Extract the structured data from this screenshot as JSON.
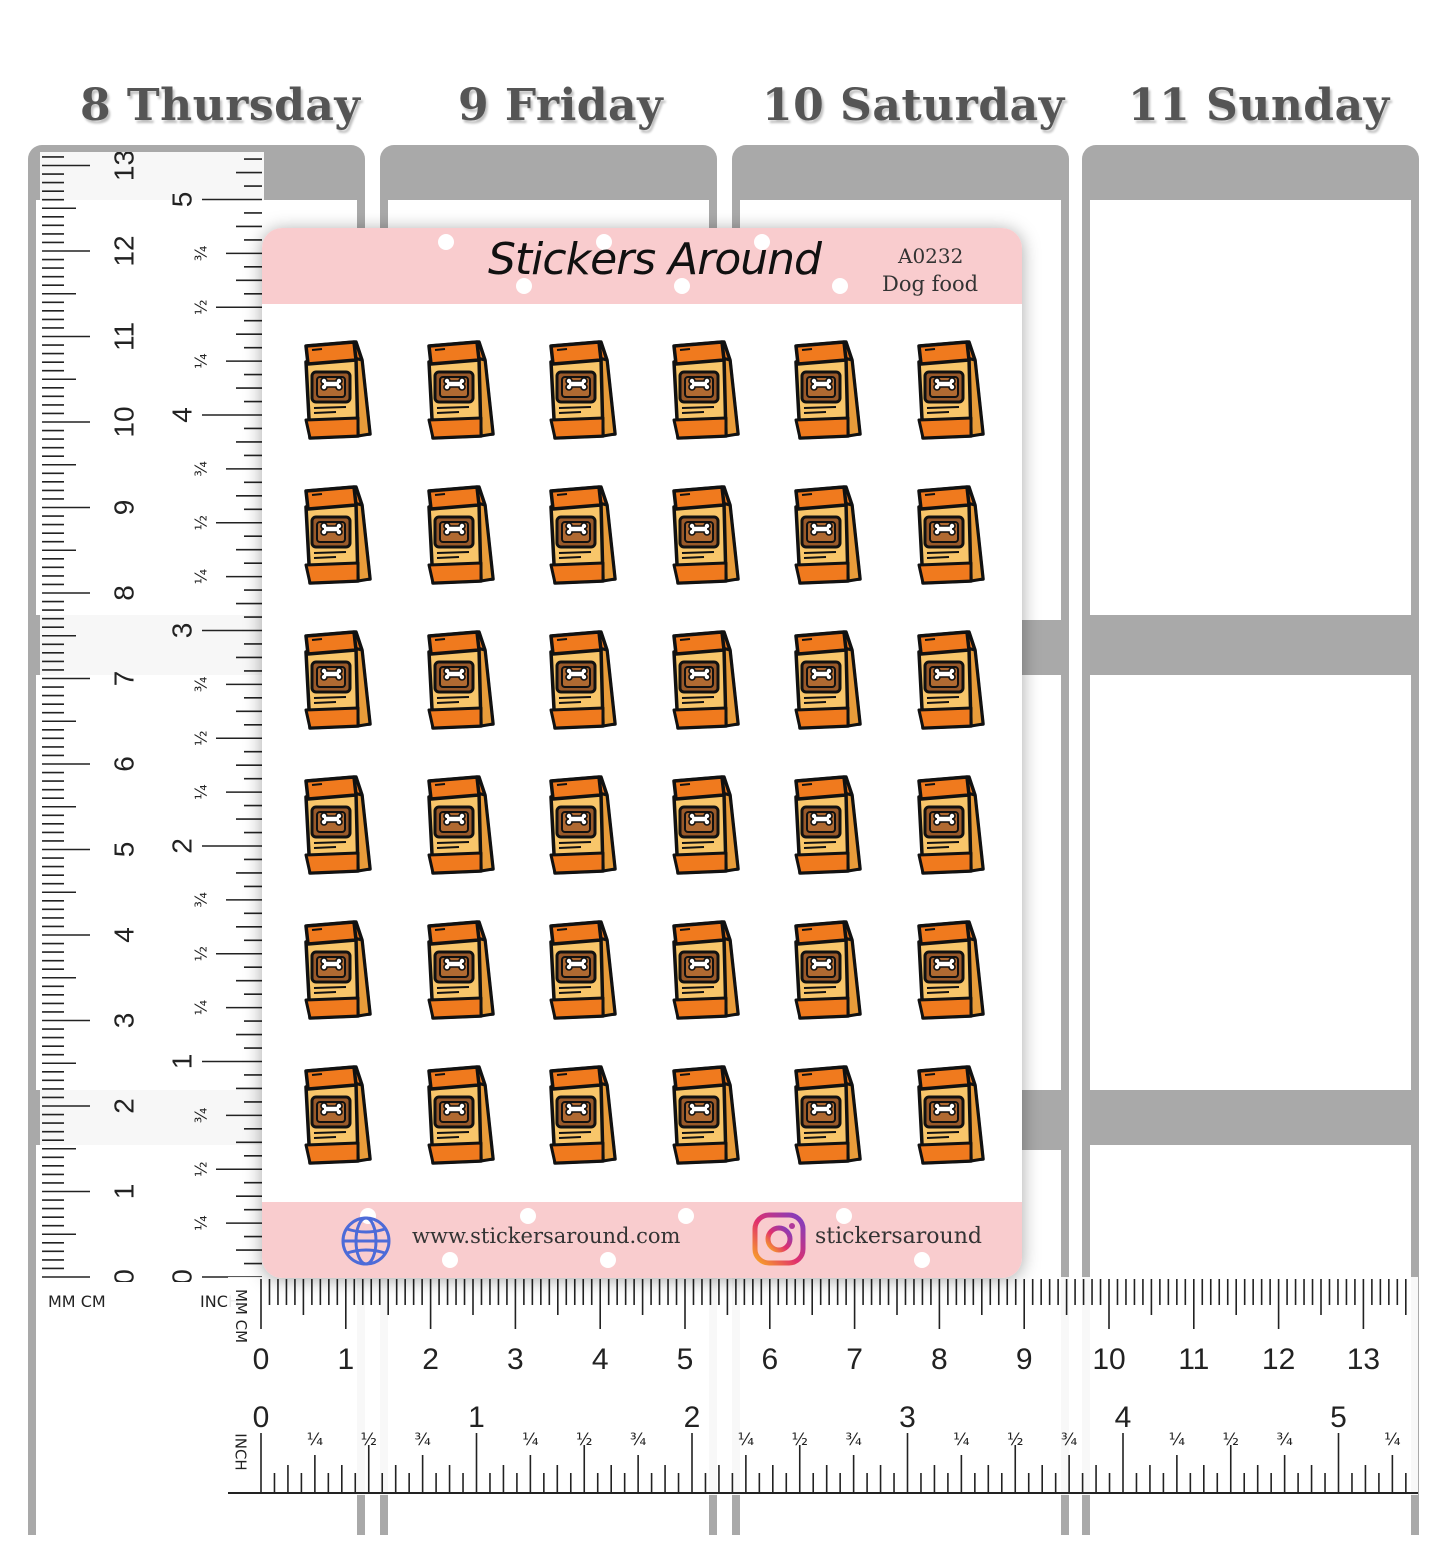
{
  "days": [
    "8 Thursday",
    "9 Friday",
    "10 Saturday",
    "11 Sunday"
  ],
  "sheet": {
    "brand": "Stickers Around",
    "code": "A0232",
    "name": "Dog food",
    "website": "www.stickersaround.com",
    "instagram": "stickersaround",
    "rows": 6,
    "cols": 6,
    "sticker_icon": "dog-food-bag-icon"
  },
  "colors": {
    "planner_gray": "#a9a9a9",
    "sheet_pink": "#f9ccce",
    "bag_orange": "#f07a1e",
    "bag_tan": "#f8c66a",
    "label_brown": "#9a5a2a"
  },
  "rulers": {
    "vertical": {
      "unit_left": "MM CM",
      "unit_right": "INCH",
      "cm_labels": [
        "13",
        "12",
        "11",
        "10",
        "9",
        "8",
        "7",
        "6",
        "5",
        "4",
        "3",
        "2",
        "1",
        "0"
      ],
      "inch_labels": [
        "5",
        "4",
        "3",
        "2",
        "1",
        "0"
      ],
      "fraction_labels": [
        "¼",
        "½",
        "¾"
      ]
    },
    "horizontal": {
      "unit_top": "MM CM",
      "unit_bottom": "INCH",
      "cm_labels": [
        "0",
        "1",
        "2",
        "3",
        "4",
        "5",
        "6",
        "7",
        "8",
        "9",
        "10",
        "11",
        "12",
        "13"
      ],
      "inch_labels": [
        "0",
        "1",
        "2",
        "3",
        "4",
        "5"
      ],
      "fraction_labels": [
        "¼",
        "½",
        "¾"
      ]
    }
  }
}
